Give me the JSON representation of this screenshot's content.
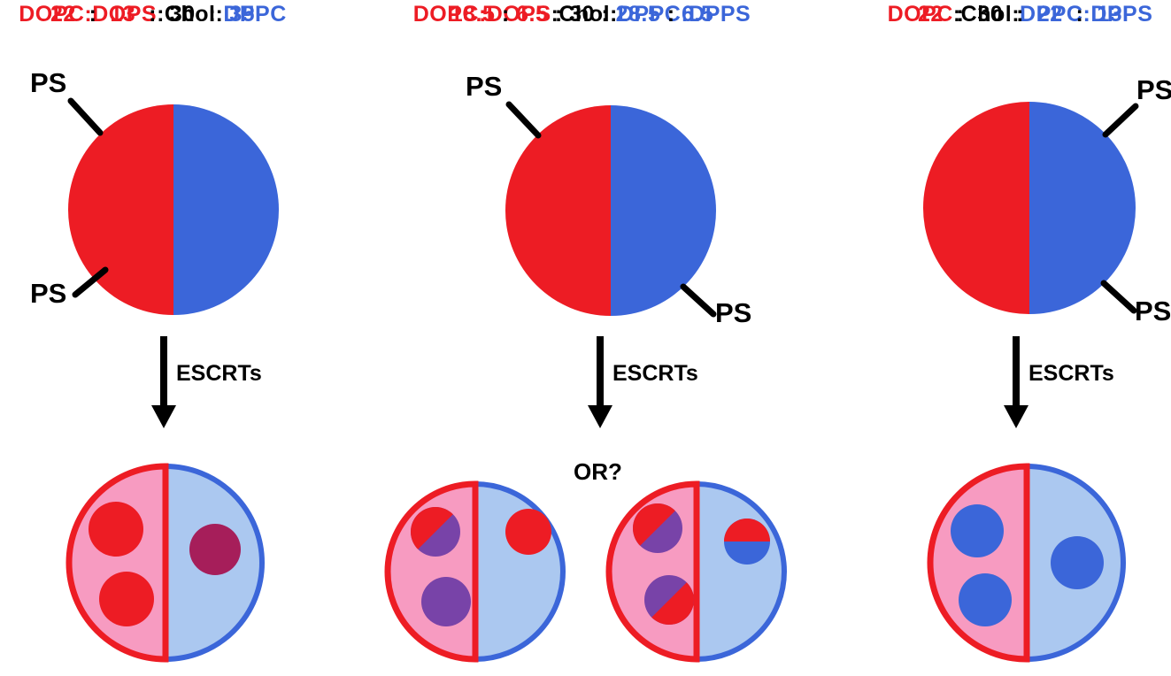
{
  "labels": {
    "ps": "PS",
    "escrts": "ESCRTs",
    "or": "OR?"
  },
  "colors": {
    "red": "#ED1C24",
    "blue": "#3B66D9",
    "pink": "#F79BC1",
    "light_blue": "#ABC8F0",
    "magenta": "#A61E5A",
    "purple": "#7843A8",
    "black": "#000000",
    "white": "#FFFFFF"
  },
  "columns": [
    {
      "composition": [
        {
          "t": "DOPC:DOPS",
          "c": "red"
        },
        {
          "t": ":Chol:",
          "c": "black"
        },
        {
          "t": "DPPC",
          "c": "blue"
        }
      ],
      "ratio": [
        {
          "t": "22",
          "c": "red"
        },
        {
          "t": "  :  ",
          "c": "black"
        },
        {
          "t": "13",
          "c": "red"
        },
        {
          "t": "  :  ",
          "c": "black"
        },
        {
          "t": "30",
          "c": "black"
        },
        {
          "t": "  :  ",
          "c": "black"
        },
        {
          "t": "35",
          "c": "blue"
        }
      ]
    },
    {
      "composition": [
        {
          "t": "DOPC:DOPS",
          "c": "red"
        },
        {
          "t": ":Chol:",
          "c": "black"
        },
        {
          "t": "DPPC:DPPS",
          "c": "blue"
        }
      ],
      "ratio": [
        {
          "t": "18.5",
          "c": "red"
        },
        {
          "t": " : ",
          "c": "black"
        },
        {
          "t": "6.5",
          "c": "red"
        },
        {
          "t": " : ",
          "c": "black"
        },
        {
          "t": "30",
          "c": "black"
        },
        {
          "t": " : ",
          "c": "black"
        },
        {
          "t": "28.5",
          "c": "blue"
        },
        {
          "t": " : ",
          "c": "black"
        },
        {
          "t": "6.5",
          "c": "blue"
        }
      ]
    },
    {
      "composition": [
        {
          "t": "DOPC",
          "c": "red"
        },
        {
          "t": ":Chol:",
          "c": "black"
        },
        {
          "t": "DPPC:DPPS",
          "c": "blue"
        }
      ],
      "ratio": [
        {
          "t": "22",
          "c": "red"
        },
        {
          "t": "  :  ",
          "c": "black"
        },
        {
          "t": "30",
          "c": "black"
        },
        {
          "t": "  :  ",
          "c": "black"
        },
        {
          "t": "22",
          "c": "blue"
        },
        {
          "t": "  :  ",
          "c": "black"
        },
        {
          "t": "13",
          "c": "blue"
        }
      ]
    }
  ]
}
